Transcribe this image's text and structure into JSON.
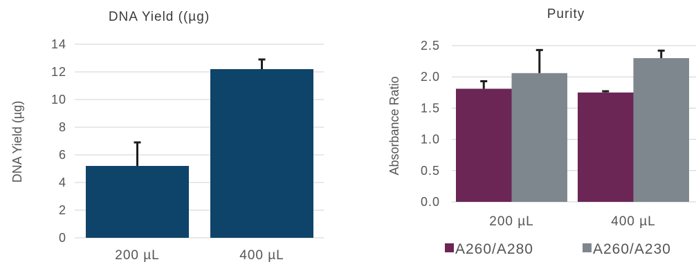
{
  "chart_data": [
    {
      "type": "bar",
      "title": "DNA Yield ((µg)",
      "ylabel": "DNA Yield (µg)",
      "xlabel": "",
      "categories": [
        "200 µL",
        "400 µL"
      ],
      "series": [
        {
          "values": [
            5.2,
            12.2
          ],
          "errors": [
            1.7,
            0.7
          ],
          "color": "#0e4469"
        }
      ],
      "ylim": [
        0,
        14
      ],
      "yticks": [
        "0",
        "2",
        "4",
        "6",
        "8",
        "10",
        "12",
        "14"
      ],
      "ytick_values": [
        0,
        2,
        4,
        6,
        8,
        10,
        12,
        14
      ],
      "grid": true,
      "legend": false
    },
    {
      "type": "bar",
      "title": "Purity",
      "ylabel": "Absorbance Ratio",
      "xlabel": "",
      "categories": [
        "200 µL",
        "400 µL"
      ],
      "series": [
        {
          "name": "A260/A280",
          "values": [
            1.81,
            1.75
          ],
          "errors": [
            0.12,
            0.02
          ],
          "color": "#6b2656"
        },
        {
          "name": "A260/A230",
          "values": [
            2.06,
            2.3
          ],
          "errors": [
            0.37,
            0.12
          ],
          "color": "#7f878e"
        }
      ],
      "ylim": [
        0,
        2.5
      ],
      "yticks": [
        "0.0",
        "0.5",
        "1.0",
        "1.5",
        "2.0",
        "2.5"
      ],
      "ytick_values": [
        0,
        0.5,
        1.0,
        1.5,
        2.0,
        2.5
      ],
      "grid": true,
      "legend": "bottom"
    }
  ]
}
